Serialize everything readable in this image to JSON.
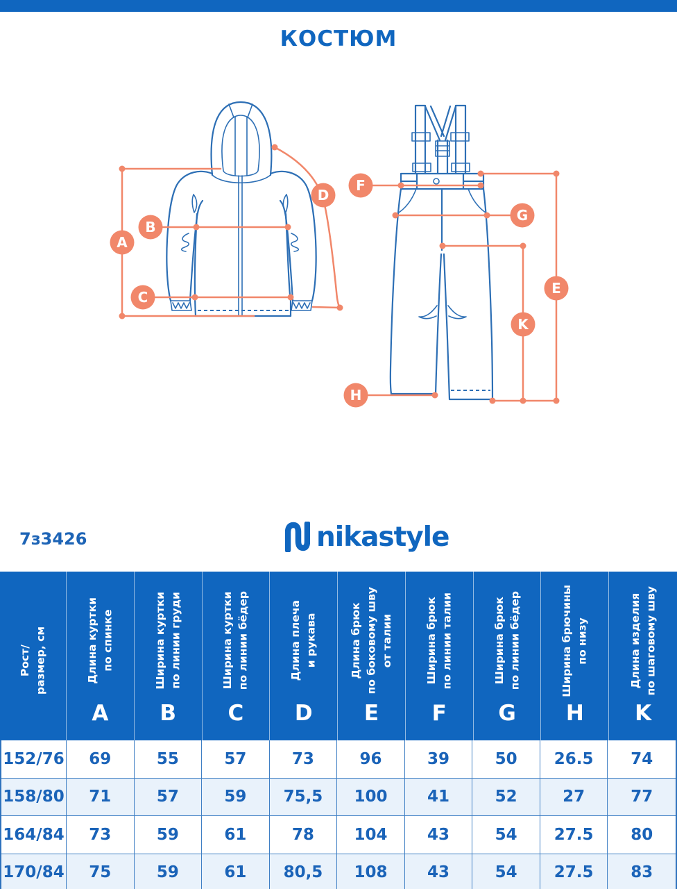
{
  "title": "КОСТЮМ",
  "product_code": "7з3426",
  "brand": {
    "name": "nikastyle"
  },
  "colors": {
    "brand_blue": "#1066bf",
    "drawing_blue": "#2d6fb5",
    "accent_orange": "#f1876a",
    "table_text_blue": "#1a63b8",
    "table_border_blue": "#3f7fc4",
    "row_alt_bg": "#e9f2fb"
  },
  "diagram": {
    "labels": {
      "A": "A",
      "B": "B",
      "C": "C",
      "D": "D",
      "E": "E",
      "F": "F",
      "G": "G",
      "H": "H",
      "K": "K"
    }
  },
  "table": {
    "size_header": "Рост/\nразмер, см",
    "columns": [
      {
        "letter": "A",
        "label": "Длина куртки\nпо спинке"
      },
      {
        "letter": "B",
        "label": "Ширина куртки\nпо линии груди"
      },
      {
        "letter": "C",
        "label": "Ширина куртки\nпо линии бёдер"
      },
      {
        "letter": "D",
        "label": "Длина плеча\nи рукава"
      },
      {
        "letter": "E",
        "label": "Длина брюк\nпо боковому шву\nот талии"
      },
      {
        "letter": "F",
        "label": "Ширина брюк\nпо линии талии"
      },
      {
        "letter": "G",
        "label": "Ширина брюк\nпо линии бёдер"
      },
      {
        "letter": "H",
        "label": "Ширина брючины\nпо низу"
      },
      {
        "letter": "K",
        "label": "Длина изделия\nпо шаговому шву"
      }
    ],
    "rows": [
      {
        "size": "152/76",
        "values": [
          "69",
          "55",
          "57",
          "73",
          "96",
          "39",
          "50",
          "26.5",
          "74"
        ]
      },
      {
        "size": "158/80",
        "values": [
          "71",
          "57",
          "59",
          "75,5",
          "100",
          "41",
          "52",
          "27",
          "77"
        ]
      },
      {
        "size": "164/84",
        "values": [
          "73",
          "59",
          "61",
          "78",
          "104",
          "43",
          "54",
          "27.5",
          "80"
        ]
      },
      {
        "size": "170/84",
        "values": [
          "75",
          "59",
          "61",
          "80,5",
          "108",
          "43",
          "54",
          "27.5",
          "83"
        ]
      }
    ]
  }
}
